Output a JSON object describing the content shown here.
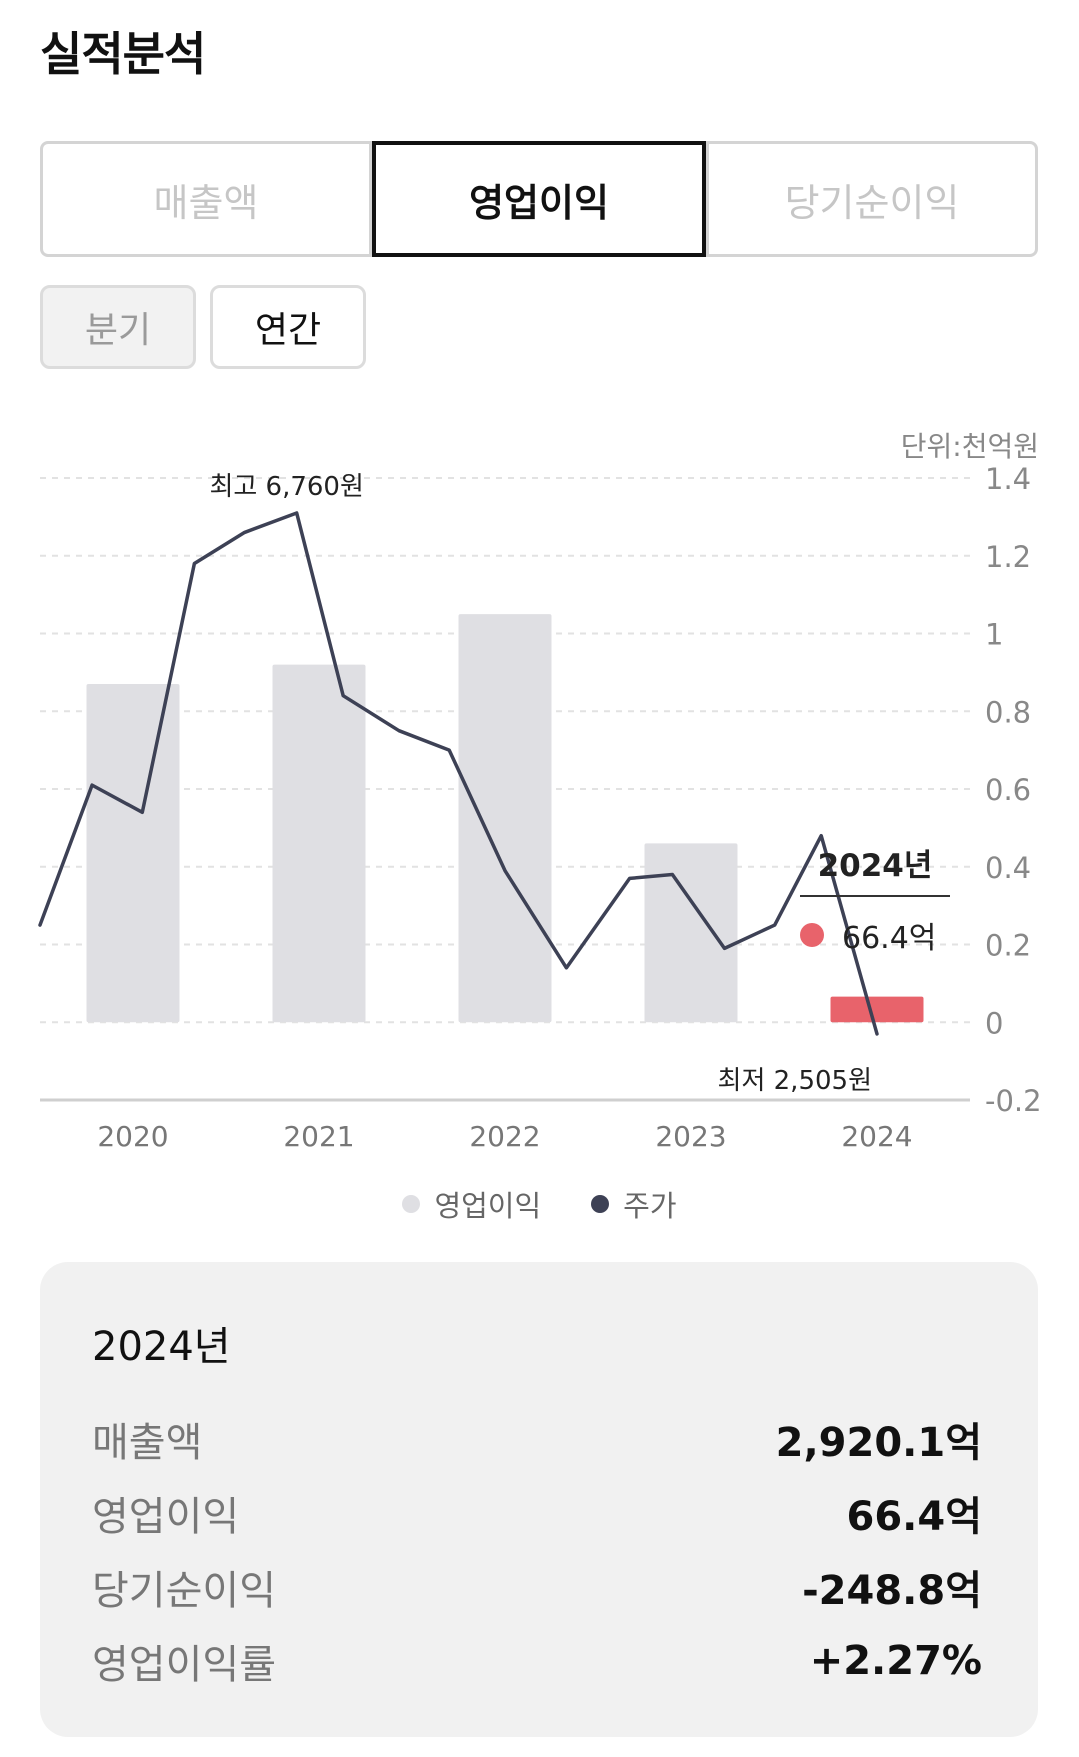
{
  "title": "실적분석",
  "tabs": [
    {
      "label": "매출액",
      "active": false
    },
    {
      "label": "영업이익",
      "active": true
    },
    {
      "label": "당기순이익",
      "active": false
    }
  ],
  "periods": [
    {
      "label": "분기",
      "active": false
    },
    {
      "label": "연간",
      "active": true
    }
  ],
  "chart_data": {
    "type": "bar",
    "unit_label": "단위:천억원",
    "categories": [
      "2020",
      "2021",
      "2022",
      "2023",
      "2024"
    ],
    "ylim": [
      -0.2,
      1.4
    ],
    "yticks": [
      "1.4",
      "1.2",
      "1",
      "0.8",
      "0.6",
      "0.4",
      "0.2",
      "0",
      "-0.2"
    ],
    "grid": true,
    "series": [
      {
        "name": "영업이익",
        "values": [
          0.87,
          0.92,
          1.05,
          0.46,
          0.066
        ],
        "color": "#dfdfe3",
        "highlight_color": "#e8636b"
      },
      {
        "name": "주가",
        "type": "line",
        "color": "#3d4155",
        "x": [
          0,
          0.28,
          0.55,
          0.83,
          1.1,
          1.38,
          1.63,
          1.93,
          2.2,
          2.5,
          2.83,
          3.17,
          3.4,
          3.68,
          3.95,
          4.2,
          4.5
        ],
        "values": [
          0.25,
          0.61,
          0.54,
          1.18,
          1.26,
          1.31,
          0.84,
          0.75,
          0.7,
          0.39,
          0.14,
          0.37,
          0.38,
          0.19,
          0.25,
          0.48,
          -0.03
        ]
      }
    ],
    "annotations": {
      "max_label": "최고 6,760원",
      "min_label": "최저 2,505원"
    },
    "legend_position": "bottom",
    "tooltip": {
      "year": "2024년",
      "value": "66.4억"
    }
  },
  "summary": {
    "year": "2024년",
    "rows": [
      {
        "label": "매출액",
        "value": "2,920.1억"
      },
      {
        "label": "영업이익",
        "value": "66.4억"
      },
      {
        "label": "당기순이익",
        "value": "-248.8억"
      },
      {
        "label": "영업이익률",
        "value": "+2.27%"
      }
    ]
  }
}
